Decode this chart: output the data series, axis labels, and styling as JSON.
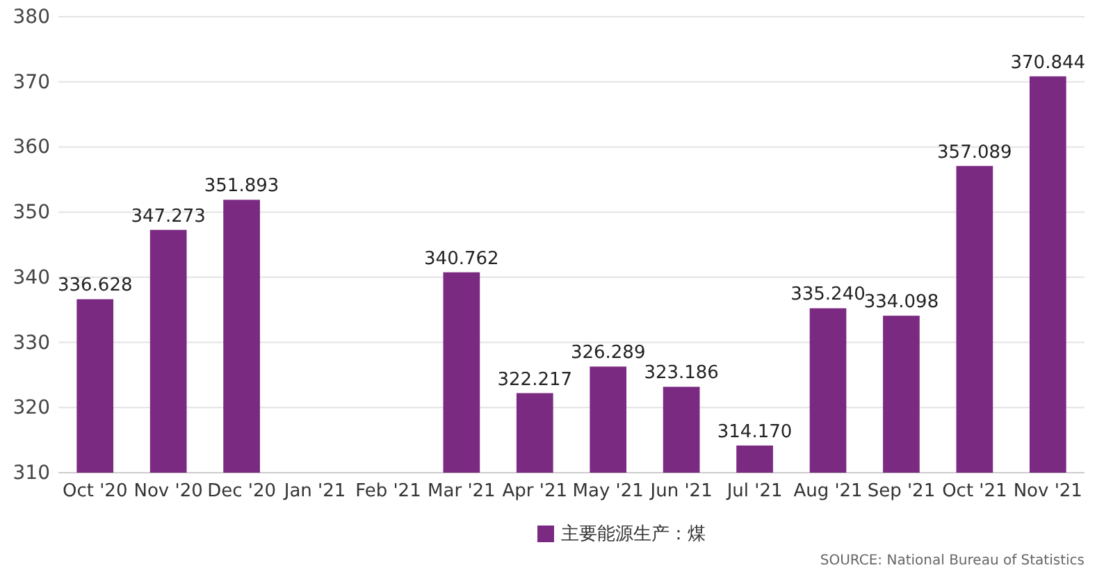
{
  "chart_data": {
    "type": "bar",
    "categories": [
      "Oct '20",
      "Nov '20",
      "Dec '20",
      "Jan '21",
      "Feb '21",
      "Mar '21",
      "Apr '21",
      "May '21",
      "Jun '21",
      "Jul '21",
      "Aug '21",
      "Sep '21",
      "Oct '21",
      "Nov '21"
    ],
    "series": [
      {
        "name": "主要能源生产：煤",
        "color": "#7b2a82",
        "values": [
          336.628,
          347.273,
          351.893,
          null,
          null,
          340.762,
          322.217,
          326.289,
          323.186,
          314.17,
          335.24,
          334.098,
          357.089,
          370.844
        ]
      }
    ],
    "value_labels": [
      "336.628",
      "347.273",
      "351.893",
      null,
      null,
      "340.762",
      "322.217",
      "326.289",
      "323.186",
      "314.170",
      "335.240",
      "334.098",
      "357.089",
      "370.844"
    ],
    "ylim": [
      310,
      380
    ],
    "yticks": [
      310,
      320,
      330,
      340,
      350,
      360,
      370,
      380
    ],
    "grid": "y",
    "legend": "bottom",
    "annotations": [
      "SOURCE: National Bureau of Statistics"
    ]
  }
}
